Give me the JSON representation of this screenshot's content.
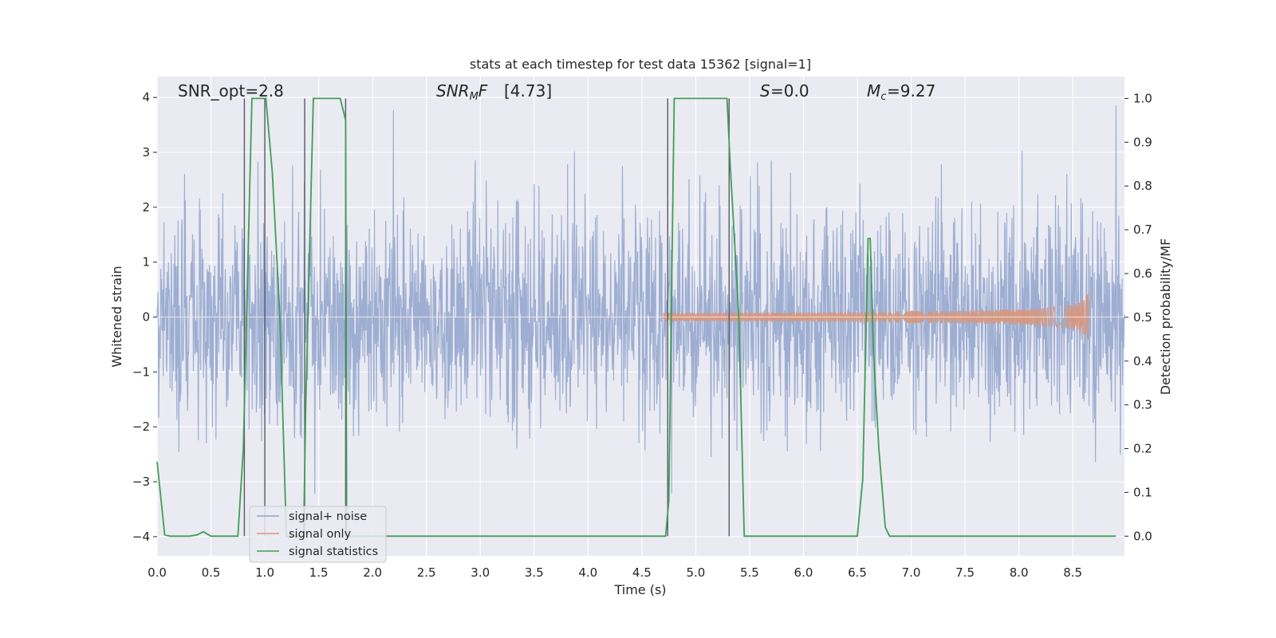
{
  "chart_data": {
    "type": "line",
    "title": "stats at each timestep for test data 15362 [signal=1]",
    "xlabel": "Time (s)",
    "ylabel_left": "Whitened strain",
    "ylabel_right": "Detection probability/MF",
    "xlim": [
      0.0,
      8.98
    ],
    "ylim_left": [
      -4.35,
      4.38
    ],
    "ylim_right": [
      -0.045,
      1.05
    ],
    "grid": true,
    "legend_position": "lower-left",
    "x_ticks": [
      "0.0",
      "0.5",
      "1.0",
      "1.5",
      "2.0",
      "2.5",
      "3.0",
      "3.5",
      "4.0",
      "4.5",
      "5.0",
      "5.5",
      "6.0",
      "6.5",
      "7.0",
      "7.5",
      "8.0",
      "8.5"
    ],
    "x_tick_values": [
      0.0,
      0.5,
      1.0,
      1.5,
      2.0,
      2.5,
      3.0,
      3.5,
      4.0,
      4.5,
      5.0,
      5.5,
      6.0,
      6.5,
      7.0,
      7.5,
      8.0,
      8.5
    ],
    "y_ticks_left": [
      "−4",
      "−3",
      "−2",
      "−1",
      "0",
      "1",
      "2",
      "3",
      "4"
    ],
    "y_tick_values_left": [
      -4,
      -3,
      -2,
      -1,
      0,
      1,
      2,
      3,
      4
    ],
    "y_ticks_right": [
      "0.0",
      "0.1",
      "0.2",
      "0.3",
      "0.4",
      "0.5",
      "0.6",
      "0.7",
      "0.8",
      "0.9",
      "1.0"
    ],
    "y_tick_values_right": [
      0.0,
      0.1,
      0.2,
      0.3,
      0.4,
      0.5,
      0.6,
      0.7,
      0.8,
      0.9,
      1.0
    ],
    "annotations": {
      "snr_opt": "SNR_opt=2.8",
      "snr_mf": "[4.73]",
      "s": "=0.0",
      "mc": "=9.27"
    },
    "series": [
      {
        "name": "signal+ noise",
        "color": "#8fa3cc",
        "kind": "noise",
        "sigma": 1.0,
        "peak_range": [
          -3.95,
          3.95
        ]
      },
      {
        "name": "signal only",
        "color": "#d9967a",
        "kind": "chirp",
        "x_start": 4.7,
        "x_end": 8.65,
        "peak_amplitude": 0.5
      },
      {
        "name": "signal statistics",
        "color": "#3f9e55",
        "axis": "right",
        "x": [
          0.0,
          0.07,
          0.12,
          0.2,
          0.3,
          0.37,
          0.43,
          0.5,
          0.6,
          0.7,
          0.75,
          0.8,
          0.88,
          0.95,
          1.01,
          1.07,
          1.14,
          1.2,
          1.3,
          1.36,
          1.38,
          1.45,
          1.5,
          1.6,
          1.7,
          1.75,
          1.76,
          1.8,
          1.9,
          2.0,
          2.3,
          3.0,
          3.5,
          4.0,
          4.4,
          4.6,
          4.65,
          4.72,
          4.75,
          4.8,
          4.9,
          5.0,
          5.1,
          5.2,
          5.29,
          5.32,
          5.4,
          5.45,
          5.5,
          5.6,
          6.0,
          6.3,
          6.5,
          6.55,
          6.6,
          6.62,
          6.65,
          6.7,
          6.76,
          6.8,
          7.0,
          7.5,
          8.0,
          8.5,
          8.9
        ],
        "y": [
          0.17,
          0.003,
          0.0,
          0.0,
          0.0,
          0.003,
          0.01,
          0.0,
          0.0,
          0.0,
          0.0,
          0.2,
          1.0,
          1.0,
          1.0,
          0.83,
          0.5,
          0.0,
          0.0,
          0.0,
          0.3,
          1.0,
          1.0,
          1.0,
          1.0,
          0.95,
          0.0,
          0.0,
          0.0,
          0.0,
          0.0,
          0.0,
          0.0,
          0.0,
          0.0,
          0.0,
          0.0,
          0.0,
          0.08,
          1.0,
          1.0,
          1.0,
          1.0,
          1.0,
          1.0,
          0.85,
          0.5,
          0.0,
          0.0,
          0.0,
          0.0,
          0.0,
          0.0,
          0.13,
          0.68,
          0.68,
          0.42,
          0.2,
          0.02,
          0.0,
          0.0,
          0.0,
          0.0,
          0.0,
          0.0
        ]
      }
    ],
    "vertical_lines_x": [
      0.81,
      1.0,
      1.37,
      1.75,
      4.74,
      5.31
    ],
    "vertical_line_range": [
      0.0,
      1.0
    ]
  }
}
